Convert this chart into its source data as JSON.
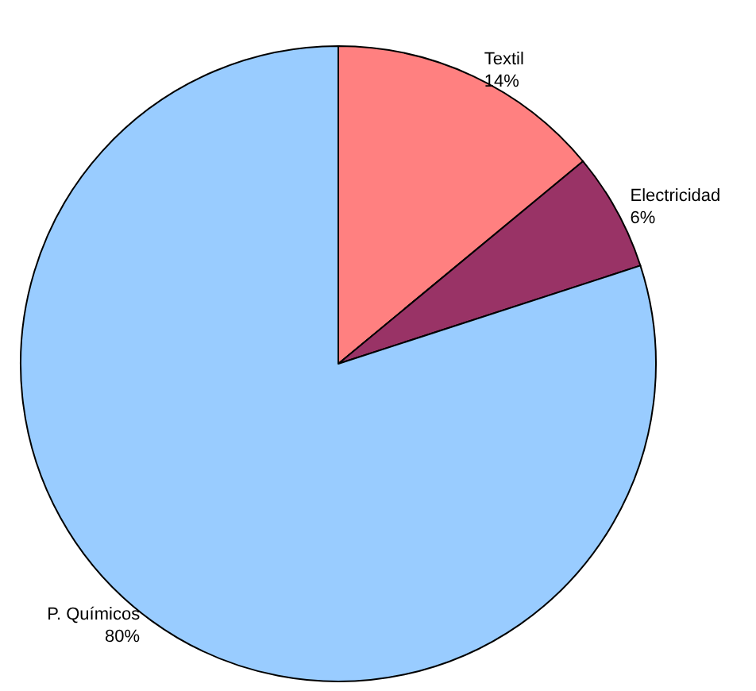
{
  "chart_data": {
    "type": "pie",
    "categories": [
      "Textil",
      "Electricidad",
      "P. Químicos"
    ],
    "values": [
      14,
      6,
      80
    ],
    "value_labels": [
      "14%",
      "6%",
      "80%"
    ],
    "colors": [
      "#ff8080",
      "#993366",
      "#99ccff"
    ],
    "legend": false
  }
}
